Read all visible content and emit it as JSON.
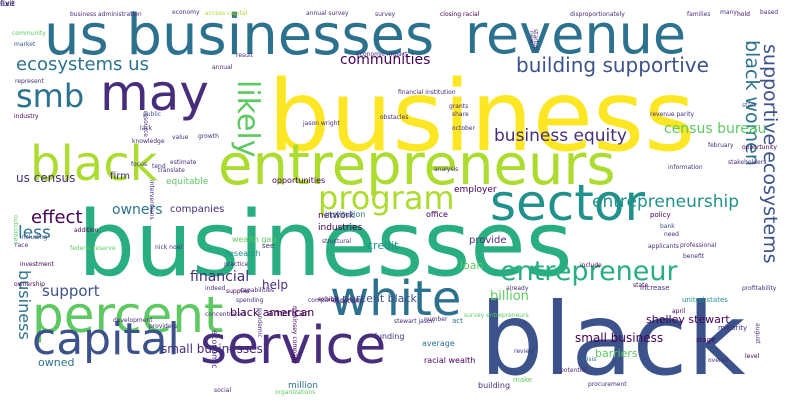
{
  "palette": [
    "#440154",
    "#472d7b",
    "#3b528b",
    "#2c728e",
    "#21918c",
    "#28ae80",
    "#5ec962",
    "#addc30",
    "#fde725"
  ],
  "words": [
    {
      "text": "businesses",
      "weight": 95,
      "color": "#28ae80"
    },
    {
      "text": "business",
      "weight": 100,
      "color": "#fde725"
    },
    {
      "text": "black",
      "weight": 92,
      "color": "#3b528b"
    },
    {
      "text": "entrepreneurs",
      "weight": 72,
      "color": "#addc30"
    },
    {
      "text": "black",
      "weight": 60,
      "color": "#addc30"
    },
    {
      "text": "us businesses",
      "weight": 66,
      "color": "#2c728e"
    },
    {
      "text": "revenue",
      "weight": 62,
      "color": "#2c728e"
    },
    {
      "text": "service",
      "weight": 62,
      "color": "#472d7b"
    },
    {
      "text": "percent",
      "weight": 58,
      "color": "#5ec962"
    },
    {
      "text": "white",
      "weight": 54,
      "color": "#2c728e"
    },
    {
      "text": "sector",
      "weight": 54,
      "color": "#21918c"
    },
    {
      "text": "may",
      "weight": 58,
      "color": "#472d7b"
    },
    {
      "text": "capital",
      "weight": 50,
      "color": "#3b528b"
    },
    {
      "text": "smb",
      "weight": 40,
      "color": "#2c728e"
    },
    {
      "text": "likely",
      "weight": 40,
      "color": "#5ec962"
    },
    {
      "text": "program",
      "weight": 38,
      "color": "#addc30"
    },
    {
      "text": "entrepreneur",
      "weight": 34,
      "color": "#28ae80"
    },
    {
      "text": "supportive ecosystems",
      "weight": 20,
      "color": "#3b528b"
    },
    {
      "text": "black women",
      "weight": 20,
      "color": "#2c728e"
    },
    {
      "text": "building supportive",
      "weight": 20,
      "color": "#3b528b"
    },
    {
      "text": "ecosystems us",
      "weight": 20,
      "color": "#2c728e"
    },
    {
      "text": "communities",
      "weight": 14,
      "color": "#440154"
    },
    {
      "text": "business equity",
      "weight": 14,
      "color": "#472d7b"
    },
    {
      "text": "census bureau",
      "weight": 17,
      "color": "#5ec962"
    },
    {
      "text": "us census",
      "weight": 14,
      "color": "#472d7b"
    },
    {
      "text": "entrepreneurship",
      "weight": 12,
      "color": "#21918c"
    },
    {
      "text": "effect",
      "weight": 16,
      "color": "#440154"
    },
    {
      "text": "less",
      "weight": 18,
      "color": "#2c728e"
    },
    {
      "text": "owners",
      "weight": 18,
      "color": "#2c728e"
    },
    {
      "text": "support",
      "weight": 13,
      "color": "#3b528b"
    },
    {
      "text": "financial",
      "weight": 16,
      "color": "#472d7b"
    },
    {
      "text": "billion",
      "weight": 14,
      "color": "#5ec962"
    },
    {
      "text": "business",
      "weight": 18,
      "color": "#2c728e"
    },
    {
      "text": "help",
      "weight": 14,
      "color": "#472d7b"
    },
    {
      "text": "percent black",
      "weight": 12,
      "color": "#3b528b"
    },
    {
      "text": "black american",
      "weight": 11,
      "color": "#440154"
    },
    {
      "text": "shelley stewart",
      "weight": 11,
      "color": "#440154"
    },
    {
      "text": "small business",
      "weight": 11,
      "color": "#440154"
    },
    {
      "text": "barriers",
      "weight": 12,
      "color": "#5ec962"
    },
    {
      "text": "small businesses",
      "weight": 11,
      "color": "#472d7b"
    },
    {
      "text": "owned",
      "weight": 12,
      "color": "#2c728e"
    },
    {
      "text": "credit",
      "weight": 11,
      "color": "#21918c"
    },
    {
      "text": "loan",
      "weight": 11,
      "color": "#5ec962"
    },
    {
      "text": "provide",
      "weight": 11,
      "color": "#472d7b"
    },
    {
      "text": "firm",
      "weight": 10,
      "color": "#472d7b"
    },
    {
      "text": "companies",
      "weight": 10,
      "color": "#472d7b"
    },
    {
      "text": "network",
      "weight": 10,
      "color": "#440154"
    },
    {
      "text": "industries",
      "weight": 9,
      "color": "#440154"
    },
    {
      "text": "equitable",
      "weight": 9,
      "color": "#5ec962"
    },
    {
      "text": "employer",
      "weight": 9,
      "color": "#440154"
    },
    {
      "text": "opportunities",
      "weight": 9,
      "color": "#440154"
    },
    {
      "text": "american",
      "weight": 8,
      "color": "#440154"
    },
    {
      "text": "economic",
      "weight": 9,
      "color": "#472d7b"
    },
    {
      "text": "million",
      "weight": 8,
      "color": "#2c728e"
    },
    {
      "text": "building",
      "weight": 9,
      "color": "#472d7b"
    },
    {
      "text": "racial wealth",
      "weight": 8,
      "color": "#440154"
    },
    {
      "text": "average",
      "weight": 8,
      "color": "#2c728e"
    },
    {
      "text": "make",
      "weight": 8,
      "color": "#5ec962"
    },
    {
      "text": "funding",
      "weight": 7,
      "color": "#472d7b"
    },
    {
      "text": "act",
      "weight": 8,
      "color": "#2c728e"
    },
    {
      "text": "wealth gap",
      "weight": 7,
      "color": "#5ec962"
    },
    {
      "text": "research",
      "weight": 8,
      "color": "#21918c"
    },
    {
      "text": "institution",
      "weight": 8,
      "color": "#2c728e"
    },
    {
      "text": "office",
      "weight": 8,
      "color": "#440154"
    },
    {
      "text": "see",
      "weight": 8,
      "color": "#472d7b"
    },
    {
      "text": "increase",
      "weight": 7,
      "color": "#472d7b"
    },
    {
      "text": "stage",
      "weight": 7,
      "color": "#440154"
    },
    {
      "text": "minority",
      "weight": 7,
      "color": "#472d7b"
    },
    {
      "text": "united states",
      "weight": 7,
      "color": "#21918c"
    },
    {
      "text": "policy",
      "weight": 7,
      "color": "#440154"
    },
    {
      "text": "survey entrepreneurs",
      "weight": 7,
      "color": "#5ec962"
    },
    {
      "text": "business administration",
      "weight": 6,
      "color": "#472d7b"
    },
    {
      "text": "access capital",
      "weight": 6,
      "color": "#addc30"
    },
    {
      "text": "annual survey",
      "weight": 6,
      "color": "#472d7b"
    },
    {
      "text": "resource",
      "weight": 6,
      "color": "#472d7b"
    },
    {
      "text": "lack",
      "weight": 6,
      "color": "#472d7b"
    },
    {
      "text": "focus",
      "weight": 6,
      "color": "#472d7b"
    },
    {
      "text": "public",
      "weight": 6,
      "color": "#3b528b"
    },
    {
      "text": "jason wright",
      "weight": 5,
      "color": "#472d7b"
    },
    {
      "text": "revenue parity",
      "weight": 5,
      "color": "#472d7b"
    },
    {
      "text": "information",
      "weight": 6,
      "color": "#472d7b"
    },
    {
      "text": "growth",
      "weight": 6,
      "color": "#472d7b"
    },
    {
      "text": "tend",
      "weight": 5,
      "color": "#472d7b"
    },
    {
      "text": "bank",
      "weight": 6,
      "color": "#3b528b"
    },
    {
      "text": "need",
      "weight": 6,
      "color": "#472d7b"
    },
    {
      "text": "stakeholders",
      "weight": 5,
      "color": "#472d7b"
    },
    {
      "text": "february",
      "weight": 5,
      "color": "#472d7b"
    },
    {
      "text": "federal reserve",
      "weight": 4,
      "color": "#5ec962"
    },
    {
      "text": "indeed",
      "weight": 6,
      "color": "#472d7b"
    },
    {
      "text": "supplier",
      "weight": 5,
      "color": "#440154"
    },
    {
      "text": "potential",
      "weight": 5,
      "color": "#472d7b"
    },
    {
      "text": "community",
      "weight": 5,
      "color": "#5ec962"
    },
    {
      "text": "market",
      "weight": 5,
      "color": "#3b528b"
    },
    {
      "text": "industry",
      "weight": 4,
      "color": "#440154"
    },
    {
      "text": "investment",
      "weight": 4,
      "color": "#440154"
    },
    {
      "text": "ownership",
      "weight": 4,
      "color": "#440154"
    },
    {
      "text": "outcomes",
      "weight": 4,
      "color": "#5ec962"
    },
    {
      "text": "including",
      "weight": 5,
      "color": "#3b528b"
    },
    {
      "text": "addition",
      "weight": 4,
      "color": "#440154"
    },
    {
      "text": "october",
      "weight": 4,
      "color": "#472d7b"
    },
    {
      "text": "share",
      "weight": 4,
      "color": "#472d7b"
    },
    {
      "text": "state",
      "weight": 4,
      "color": "#440154"
    },
    {
      "text": "april",
      "weight": 4,
      "color": "#440154"
    },
    {
      "text": "profitability",
      "weight": 4,
      "color": "#472d7b"
    },
    {
      "text": "opportunity",
      "weight": 4,
      "color": "#440154"
    },
    {
      "text": "start",
      "weight": 4,
      "color": "#3b528b"
    },
    {
      "text": "hold",
      "weight": 4,
      "color": "#440154"
    },
    {
      "text": "families",
      "weight": 4,
      "color": "#472d7b"
    },
    {
      "text": "many",
      "weight": 4,
      "color": "#472d7b"
    },
    {
      "text": "disproportionately",
      "weight": 3,
      "color": "#472d7b"
    },
    {
      "text": "closing racial",
      "weight": 4,
      "color": "#440154"
    },
    {
      "text": "new",
      "weight": 5,
      "color": "#472d7b"
    },
    {
      "text": "result",
      "weight": 4,
      "color": "#472d7b"
    },
    {
      "text": "annual",
      "weight": 4,
      "color": "#472d7b"
    },
    {
      "text": "organizations",
      "weight": 4,
      "color": "#5ec962"
    },
    {
      "text": "mckinsey company",
      "weight": 4,
      "color": "#440154"
    },
    {
      "text": "crisis",
      "weight": 4,
      "color": "#2c728e"
    },
    {
      "text": "overall",
      "weight": 4,
      "color": "#472d7b"
    },
    {
      "text": "level",
      "weight": 4,
      "color": "#440154"
    },
    {
      "text": "august",
      "weight": 4,
      "color": "#472d7b"
    },
    {
      "text": "professional",
      "weight": 4,
      "color": "#472d7b"
    },
    {
      "text": "procurement",
      "weight": 4,
      "color": "#472d7b"
    },
    {
      "text": "stewart jason",
      "weight": 4,
      "color": "#472d7b"
    },
    {
      "text": "include",
      "weight": 4,
      "color": "#440154"
    },
    {
      "text": "pandemic",
      "weight": 4,
      "color": "#472d7b"
    },
    {
      "text": "concentrated",
      "weight": 4,
      "color": "#472d7b"
    },
    {
      "text": "especially",
      "weight": 4,
      "color": "#472d7b"
    },
    {
      "text": "capabilities",
      "weight": 4,
      "color": "#472d7b"
    },
    {
      "text": "applicants",
      "weight": 4,
      "color": "#472d7b"
    },
    {
      "text": "benefit",
      "weight": 4,
      "color": "#472d7b"
    },
    {
      "text": "startup",
      "weight": 4,
      "color": "#472d7b"
    },
    {
      "text": "grants",
      "weight": 3,
      "color": "#472d7b"
    },
    {
      "text": "financial institution",
      "weight": 3,
      "color": "#472d7b"
    },
    {
      "text": "economic impact",
      "weight": 3,
      "color": "#472d7b"
    },
    {
      "text": "obstacles",
      "weight": 3,
      "color": "#472d7b"
    },
    {
      "text": "nick noel",
      "weight": 3,
      "color": "#472d7b"
    },
    {
      "text": "development",
      "weight": 3,
      "color": "#472d7b"
    },
    {
      "text": "knowledge",
      "weight": 3,
      "color": "#472d7b"
    },
    {
      "text": "interventions",
      "weight": 3,
      "color": "#472d7b"
    },
    {
      "text": "compared percent",
      "weight": 3,
      "color": "#472d7b"
    },
    {
      "text": "exhibit",
      "weight": 3,
      "color": "#440154"
    },
    {
      "text": "spending",
      "weight": 3,
      "color": "#472d7b"
    },
    {
      "text": "practice",
      "weight": 3,
      "color": "#472d7b"
    },
    {
      "text": "structural",
      "weight": 3,
      "color": "#472d7b"
    },
    {
      "text": "produce",
      "weight": 3,
      "color": "#472d7b"
    },
    {
      "text": "social",
      "weight": 3,
      "color": "#472d7b"
    },
    {
      "text": "race",
      "weight": 3,
      "color": "#472d7b"
    },
    {
      "text": "analysis",
      "weight": 3,
      "color": "#472d7b"
    },
    {
      "text": "providers",
      "weight": 3,
      "color": "#472d7b"
    },
    {
      "text": "economy",
      "weight": 3,
      "color": "#472d7b"
    },
    {
      "text": "survey",
      "weight": 3,
      "color": "#472d7b"
    },
    {
      "text": "represent",
      "weight": 3,
      "color": "#472d7b"
    },
    {
      "text": "value",
      "weight": 3,
      "color": "#472d7b"
    },
    {
      "text": "estimate",
      "weight": 3,
      "color": "#472d7b"
    },
    {
      "text": "translate",
      "weight": 3,
      "color": "#472d7b"
    },
    {
      "text": "number",
      "weight": 3,
      "color": "#472d7b"
    },
    {
      "text": "already",
      "weight": 3,
      "color": "#472d7b"
    },
    {
      "text": "review",
      "weight": 3,
      "color": "#472d7b"
    },
    {
      "text": "based",
      "weight": 3,
      "color": "#472d7b"
    },
    {
      "text": "exit",
      "weight": 3,
      "color": "#472d7b"
    },
    {
      "text": "five",
      "weight": 3,
      "color": "#472d7b"
    }
  ]
}
